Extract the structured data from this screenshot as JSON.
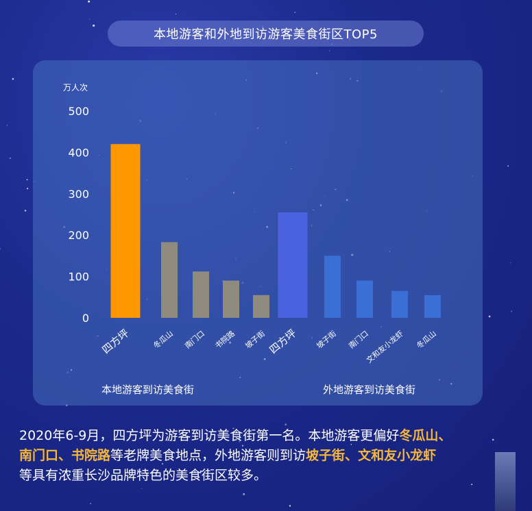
{
  "title": "本地游客和外地到访游客美食街区TOP5",
  "chart_data": {
    "type": "bar",
    "ylabel": "万人次",
    "ylim": [
      0,
      500
    ],
    "yticks": [
      0,
      100,
      200,
      300,
      400,
      500
    ],
    "groups": [
      {
        "name": "本地游客到访美食街",
        "categories": [
          "四方坪",
          "冬瓜山",
          "南门口",
          "书院路",
          "坡子街"
        ],
        "values": [
          420,
          183,
          112,
          90,
          55
        ],
        "colors": [
          "#ff9800",
          "#8f8b7e",
          "#8f8b7e",
          "#8f8b7e",
          "#8f8b7e"
        ]
      },
      {
        "name": "外地游客到访美食街",
        "categories": [
          "四方坪",
          "坡子街",
          "南门口",
          "文和友小龙虾",
          "冬瓜山"
        ],
        "values": [
          255,
          150,
          90,
          65,
          55
        ],
        "colors": [
          "#4c63e0",
          "#3a6fd6",
          "#3a6fd6",
          "#3a6fd6",
          "#3a6fd6"
        ]
      }
    ]
  },
  "description": {
    "p1": "2020年6-9月，四方坪为游客到访美食街第一名。本地游客更偏好",
    "h1": "冬瓜山、",
    "h2": "南门口、",
    "h3": "书院路",
    "p2": "等老牌美食地点，外地游客则到访",
    "h4": "坡子街、",
    "h5": "文和友小龙虾",
    "p3": "等具有浓重长沙品牌特色的美食街区较多。"
  }
}
